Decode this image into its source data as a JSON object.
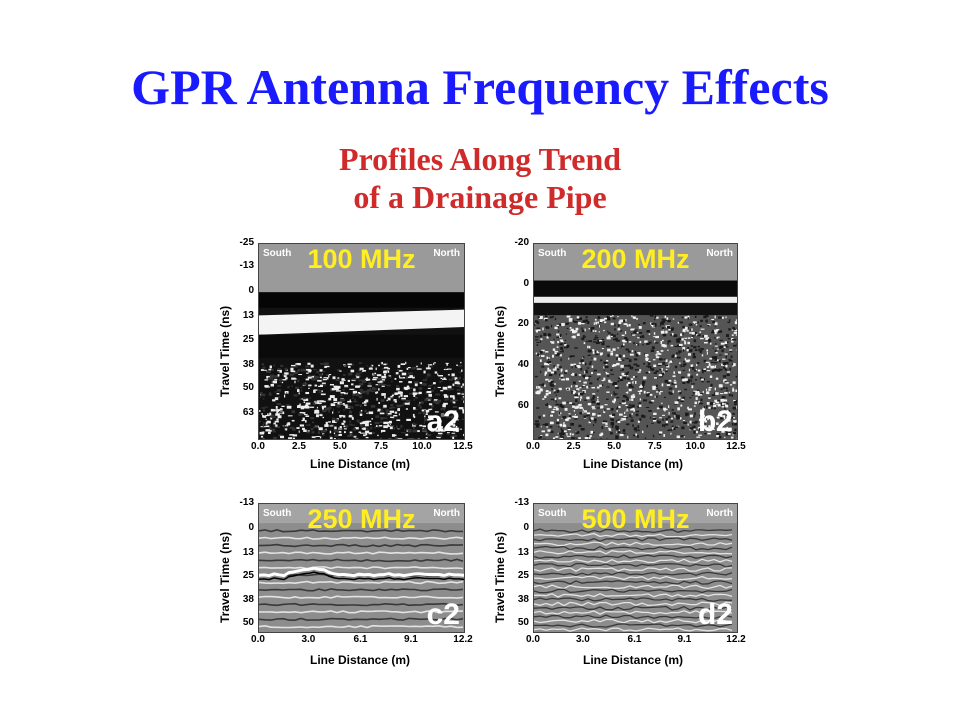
{
  "title": "GPR Antenna Frequency Effects",
  "subtitle_lines": [
    "Profiles Along Trend",
    "of a Drainage Pipe"
  ],
  "panels": [
    {
      "id": "a2",
      "frequency": "100 MHz",
      "tag": "a2",
      "south_label": "South",
      "north_label": "North",
      "ylabel": "Travel Time (ns)",
      "xlabel": "Line Distance (m)",
      "yticks": [
        "-25",
        "-13",
        "0",
        "13",
        "25",
        "38",
        "50",
        "63"
      ],
      "xticks": [
        "0.0",
        "2.5",
        "5.0",
        "7.5",
        "10.0",
        "12.5"
      ],
      "ylim": [
        -25,
        76
      ],
      "xlim": [
        0.0,
        12.5
      ]
    },
    {
      "id": "b2",
      "frequency": "200 MHz",
      "tag": "b2",
      "south_label": "South",
      "north_label": "North",
      "ylabel": "Travel Time (ns)",
      "xlabel": "Line Distance (m)",
      "yticks": [
        "-20",
        "0",
        "20",
        "40",
        "60"
      ],
      "xticks": [
        "0.0",
        "2.5",
        "5.0",
        "7.5",
        "10.0",
        "12.5"
      ],
      "ylim": [
        -20,
        76
      ],
      "xlim": [
        0.0,
        12.5
      ]
    },
    {
      "id": "c2",
      "frequency": "250 MHz",
      "tag": "c2",
      "south_label": "South",
      "north_label": "North",
      "ylabel": "Travel Time (ns)",
      "xlabel": "Line Distance (m)",
      "yticks": [
        "-13",
        "0",
        "13",
        "25",
        "38",
        "50"
      ],
      "xticks": [
        "0.0",
        "3.0",
        "6.1",
        "9.1",
        "12.2"
      ],
      "ylim": [
        -13,
        54
      ],
      "xlim": [
        0.0,
        12.2
      ]
    },
    {
      "id": "d2",
      "frequency": "500 MHz",
      "tag": "d2",
      "south_label": "South",
      "north_label": "North",
      "ylabel": "Travel Time (ns)",
      "xlabel": "Line Distance (m)",
      "yticks": [
        "-13",
        "0",
        "13",
        "25",
        "38",
        "50"
      ],
      "xticks": [
        "0.0",
        "3.0",
        "6.1",
        "9.1",
        "12.2"
      ],
      "ylim": [
        -13,
        54
      ],
      "xlim": [
        0.0,
        12.2
      ]
    }
  ]
}
